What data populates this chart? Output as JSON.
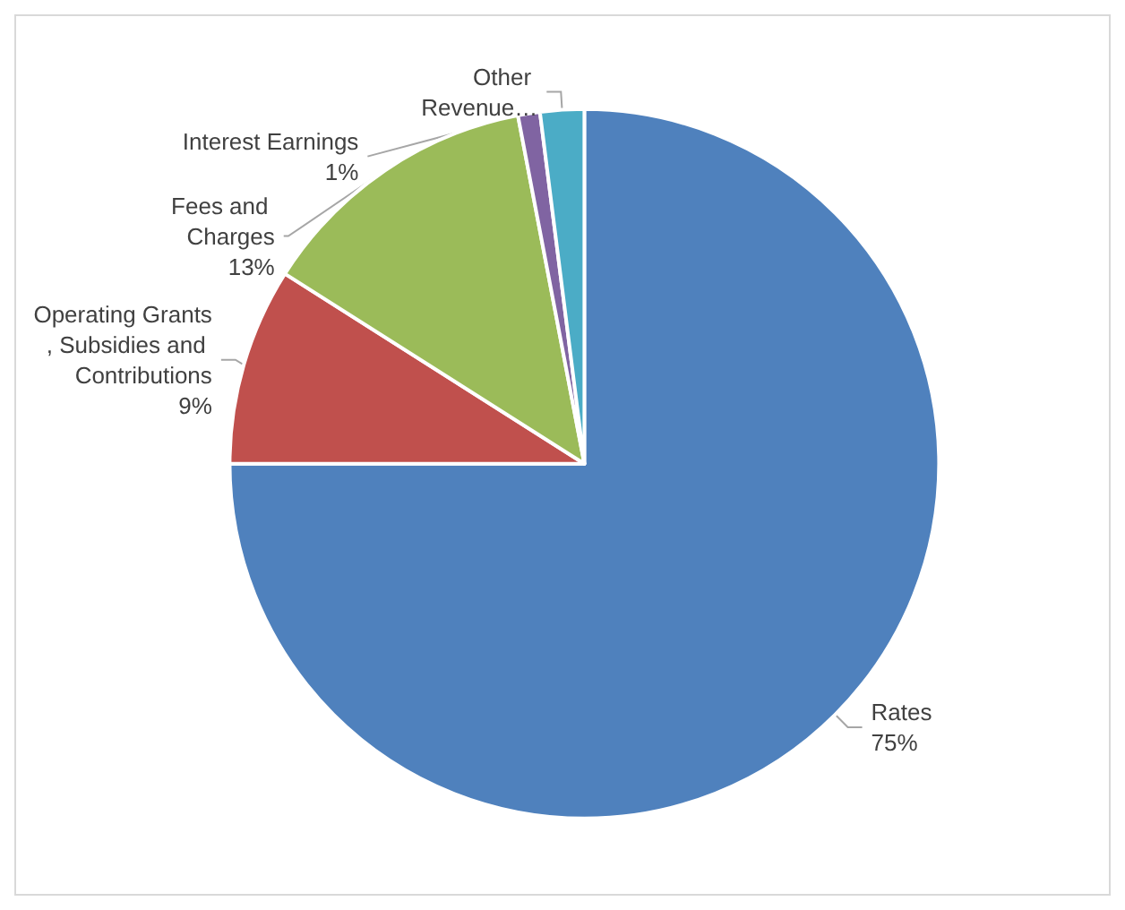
{
  "chart_data": {
    "type": "pie",
    "categories": [
      "Rates",
      "Operating Grants, Subsidies and Contributions",
      "Fees and Charges",
      "Interest Earnings",
      "Other Revenue…"
    ],
    "values": [
      75,
      9,
      13,
      1,
      2
    ],
    "colors": [
      "#4f81bd",
      "#c0504d",
      "#9bbb59",
      "#8064a2",
      "#4bacc6"
    ],
    "value_labels": [
      "75%",
      "9%",
      "13%",
      "1%",
      null
    ],
    "legend": false
  }
}
